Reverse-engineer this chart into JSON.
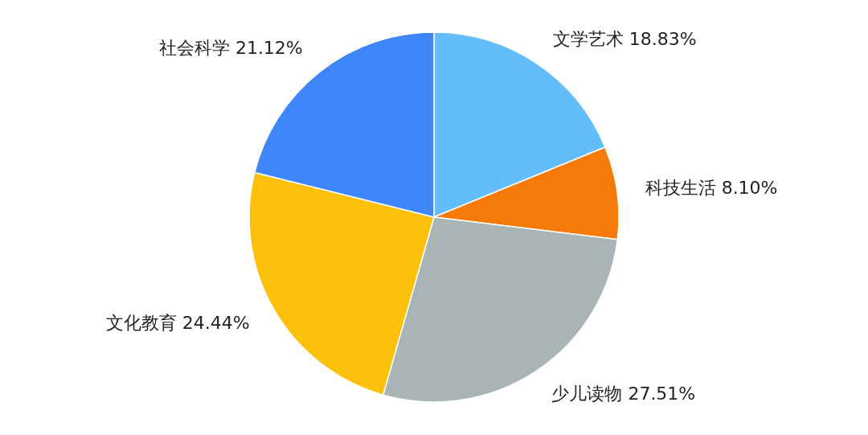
{
  "chart_data": {
    "type": "pie",
    "categories": [
      "文学艺术",
      "科技生活",
      "少儿读物",
      "文化教育",
      "社会科学"
    ],
    "values": [
      18.83,
      8.1,
      27.51,
      24.44,
      21.12
    ],
    "value_labels": [
      "18.83%",
      "8.10%",
      "27.51%",
      "24.44%",
      "21.12%"
    ],
    "colors": [
      "#64bdfb",
      "#f57a0a",
      "#a9b5b4",
      "#fbc10a",
      "#3f86fa"
    ]
  }
}
